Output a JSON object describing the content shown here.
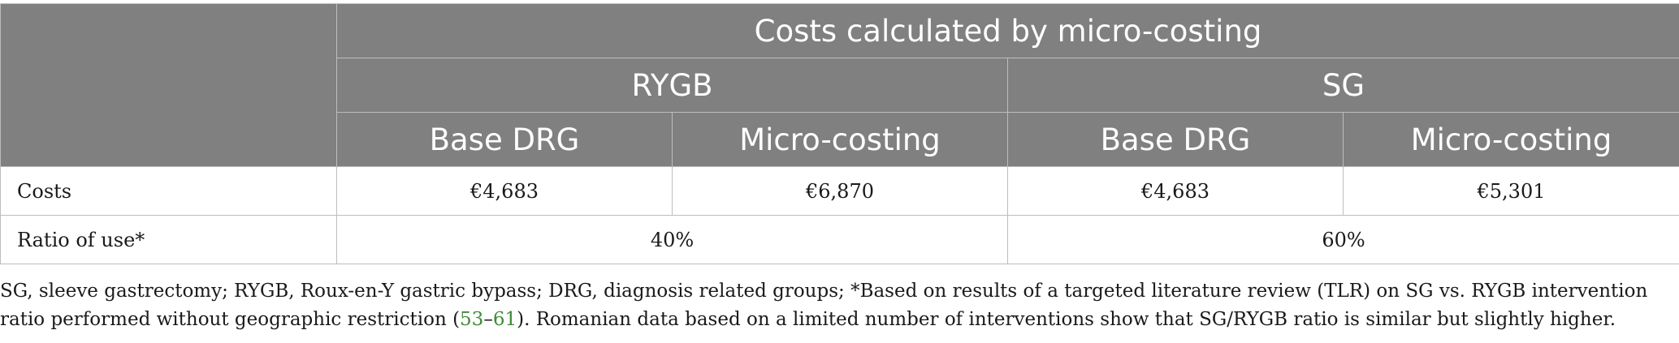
{
  "table": {
    "header": {
      "top": "Costs calculated by micro-costing",
      "groups": [
        "RYGB",
        "SG"
      ],
      "subheaders": [
        "Base DRG",
        "Micro-costing",
        "Base DRG",
        "Micro-costing"
      ]
    },
    "rows": [
      {
        "label": "Costs",
        "cells": [
          "€4,683",
          "€6,870",
          "€4,683",
          "€5,301"
        ]
      },
      {
        "label": "Ratio of use*",
        "cells": [
          "40%",
          "60%"
        ]
      }
    ]
  },
  "footnote": {
    "text_before": "SG, sleeve gastrectomy; RYGB, Roux-en-Y gastric bypass; DRG, diagnosis related groups; *Based on results of a targeted literature review (TLR) on SG vs. RYGB intervention ratio performed without geographic restriction (",
    "ref_start": "53",
    "ref_sep": "–",
    "ref_end": "61",
    "text_after": "). Romanian data based on a limited number of interventions show that SG/RYGB ratio is similar but slightly higher.",
    "link_color": "#3d8b37"
  },
  "colors": {
    "header_bg": "#808080",
    "header_text": "#ffffff",
    "border": "#bdbdbd"
  }
}
